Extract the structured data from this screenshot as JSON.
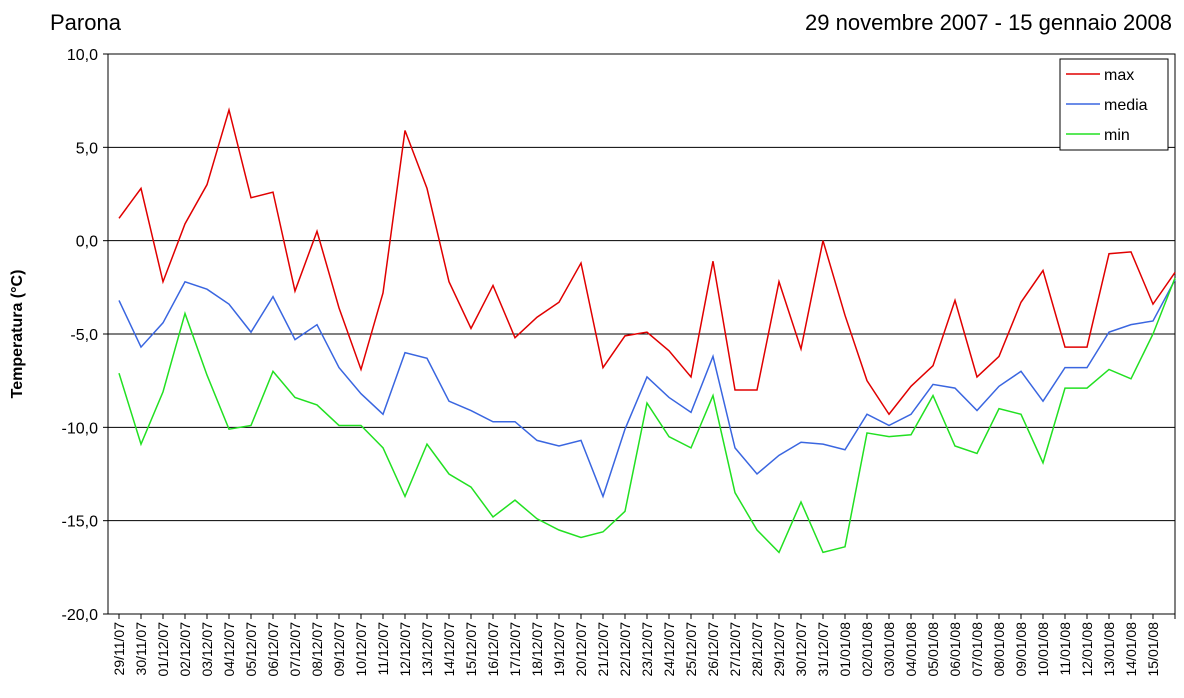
{
  "chart_data": {
    "type": "line",
    "title": "Parona",
    "subtitle": "29 novembre 2007 - 15 gennaio 2008",
    "y_label": "Temperatura (°C)",
    "categories": [
      "29/11/07",
      "30/11/07",
      "01/12/07",
      "02/12/07",
      "03/12/07",
      "04/12/07",
      "05/12/07",
      "06/12/07",
      "07/12/07",
      "08/12/07",
      "09/12/07",
      "10/12/07",
      "11/12/07",
      "12/12/07",
      "13/12/07",
      "14/12/07",
      "15/12/07",
      "16/12/07",
      "17/12/07",
      "18/12/07",
      "19/12/07",
      "20/12/07",
      "21/12/07",
      "22/12/07",
      "23/12/07",
      "24/12/07",
      "25/12/07",
      "26/12/07",
      "27/12/07",
      "28/12/07",
      "29/12/07",
      "30/12/07",
      "31/12/07",
      "01/01/08",
      "02/01/08",
      "03/01/08",
      "04/01/08",
      "05/01/08",
      "06/01/08",
      "07/01/08",
      "08/01/08",
      "09/01/08",
      "10/01/08",
      "11/01/08",
      "12/01/08",
      "13/01/08",
      "14/01/08",
      "15/01/08",
      null
    ],
    "series": [
      {
        "name": "max",
        "color": "#e00000",
        "values": [
          1.2,
          2.8,
          -2.2,
          0.9,
          3.0,
          7.0,
          2.3,
          2.6,
          -2.7,
          0.5,
          -3.6,
          -6.9,
          -2.8,
          5.9,
          2.8,
          -2.2,
          -4.7,
          -2.4,
          -5.2,
          -4.1,
          -3.3,
          -1.2,
          -6.8,
          -5.1,
          -4.9,
          -5.9,
          -7.3,
          -1.1,
          -8.0,
          -8.0,
          -2.2,
          -5.8,
          0.0,
          -4.0,
          -7.5,
          -9.3,
          -7.8,
          -6.7,
          -3.2,
          -7.3,
          -6.2,
          -3.3,
          -1.6,
          -5.7,
          -5.7,
          -0.7,
          -0.6,
          -3.4,
          -1.7
        ]
      },
      {
        "name": "media",
        "color": "#3a66e0",
        "values": [
          -3.2,
          -5.7,
          -4.4,
          -2.2,
          -2.6,
          -3.4,
          -4.9,
          -3.0,
          -5.3,
          -4.5,
          -6.8,
          -8.2,
          -9.3,
          -6.0,
          -6.3,
          -8.6,
          -9.1,
          -9.7,
          -9.7,
          -10.7,
          -11.0,
          -10.7,
          -13.7,
          -10.1,
          -7.3,
          -8.4,
          -9.2,
          -6.2,
          -11.1,
          -12.5,
          -11.5,
          -10.8,
          -10.9,
          -11.2,
          -9.3,
          -9.9,
          -9.3,
          -7.7,
          -7.9,
          -9.1,
          -7.8,
          -7.0,
          -8.6,
          -6.8,
          -6.8,
          -4.9,
          -4.5,
          -4.3,
          -2.1
        ]
      },
      {
        "name": "min",
        "color": "#22e022",
        "values": [
          -7.1,
          -10.9,
          -8.1,
          -3.9,
          -7.2,
          -10.1,
          -9.9,
          -7.0,
          -8.4,
          -8.8,
          -9.9,
          -9.9,
          -11.1,
          -13.7,
          -10.9,
          -12.5,
          -13.2,
          -14.8,
          -13.9,
          -14.9,
          -15.5,
          -15.9,
          -15.6,
          -14.5,
          -8.7,
          -10.5,
          -11.1,
          -8.3,
          -13.5,
          -15.5,
          -16.7,
          -14.0,
          -16.7,
          -16.4,
          -10.3,
          -10.5,
          -10.4,
          -8.3,
          -11.0,
          -11.4,
          -9.0,
          -9.3,
          -11.9,
          -7.9,
          -7.9,
          -6.9,
          -7.4,
          -5.0,
          -2.0
        ]
      }
    ],
    "ylim": [
      -20,
      10
    ],
    "yticks": [
      {
        "value": -20,
        "label": "-20,0"
      },
      {
        "value": -15,
        "label": "-15,0"
      },
      {
        "value": -10,
        "label": "-10,0"
      },
      {
        "value": -5,
        "label": "-5,0"
      },
      {
        "value": 0,
        "label": "0,0"
      },
      {
        "value": 5,
        "label": "5,0"
      },
      {
        "value": 10,
        "label": "10,0"
      }
    ],
    "grid": true,
    "legend": "top-right"
  }
}
